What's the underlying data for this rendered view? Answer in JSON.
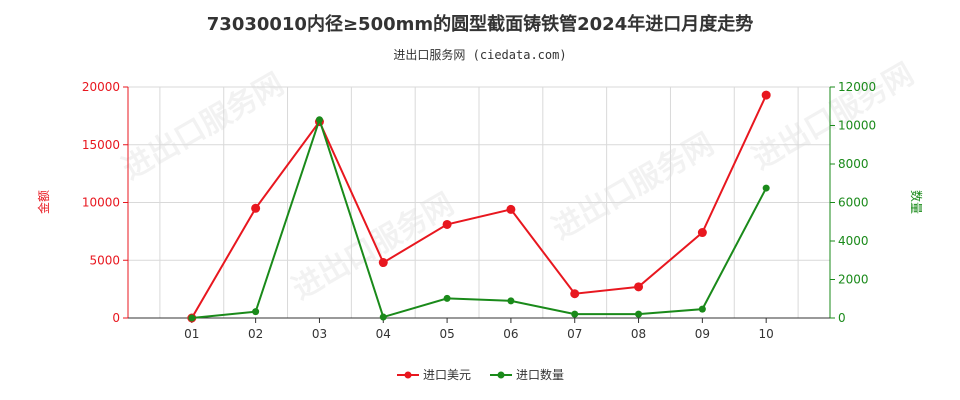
{
  "title": "73030010内径≥500mm的圆型截面铸铁管2024年进口月度走势",
  "subtitle": "进出口服务网 (ciedata.com)",
  "watermark": "进出口服务网",
  "chart_data": {
    "type": "line",
    "categories": [
      "01",
      "02",
      "03",
      "04",
      "05",
      "06",
      "07",
      "08",
      "09",
      "10"
    ],
    "ylabel_left": "金额",
    "ylabel_right": "数量",
    "ylim_left": [
      0,
      20000
    ],
    "ylim_right": [
      0,
      12000
    ],
    "yticks_left": [
      "0",
      "5000",
      "10000",
      "15000",
      "20000"
    ],
    "yticks_right": [
      "0",
      "2000",
      "4000",
      "6000",
      "8000",
      "10000",
      "12000"
    ],
    "legend_position": "bottom",
    "grid": true,
    "series": [
      {
        "name": "进口美元",
        "axis": "left",
        "color": "#e8171f",
        "values": [
          0,
          9500,
          17000,
          4800,
          8100,
          9400,
          2100,
          2700,
          7400,
          19300
        ]
      },
      {
        "name": "进口数量",
        "axis": "right",
        "color": "#1a8a1a",
        "values": [
          0,
          330,
          10300,
          50,
          1020,
          890,
          200,
          200,
          460,
          6750
        ]
      }
    ]
  },
  "colors": {
    "left_axis": "#e8171f",
    "right_axis": "#1a8a1a",
    "grid": "#d9d9d9"
  }
}
